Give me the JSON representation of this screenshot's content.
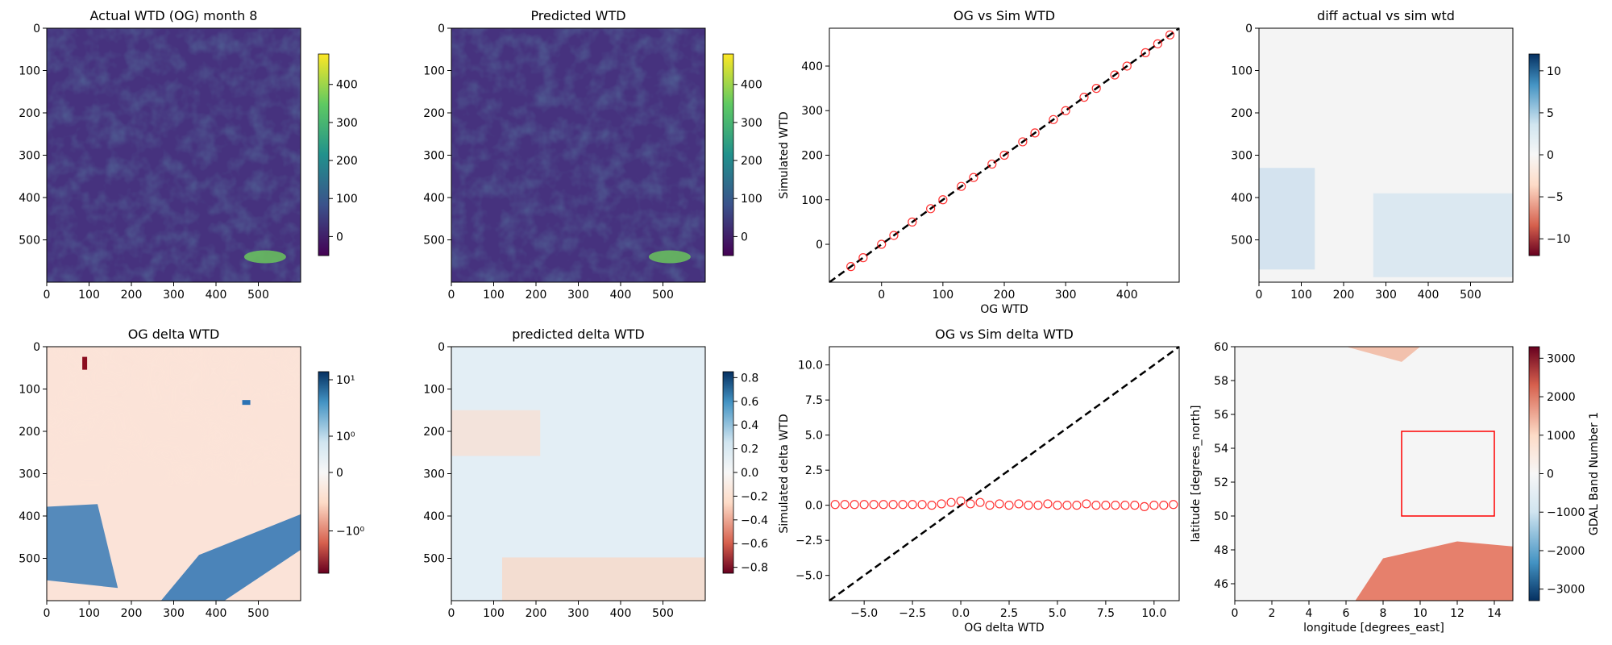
{
  "chart_data": [
    {
      "type": "heatmap",
      "title": "Actual WTD (OG) month 8",
      "xticks": [
        "0",
        "100",
        "200",
        "300",
        "400",
        "500"
      ],
      "yticks": [
        "0",
        "100",
        "200",
        "300",
        "400",
        "500"
      ],
      "colormap": "viridis",
      "colorbar": {
        "ticks": [
          "0",
          "100",
          "200",
          "300",
          "400"
        ],
        "range": [
          -50,
          480
        ]
      }
    },
    {
      "type": "heatmap",
      "title": "Predicted WTD",
      "xticks": [
        "0",
        "100",
        "200",
        "300",
        "400",
        "500"
      ],
      "yticks": [
        "0",
        "100",
        "200",
        "300",
        "400",
        "500"
      ],
      "colormap": "viridis",
      "colorbar": {
        "ticks": [
          "0",
          "100",
          "200",
          "300",
          "400"
        ],
        "range": [
          -50,
          480
        ]
      }
    },
    {
      "type": "scatter",
      "title": "OG vs Sim WTD",
      "xlabel": "OG WTD",
      "ylabel": "Simulated WTD",
      "xticks": [
        "0",
        "100",
        "200",
        "300",
        "400"
      ],
      "yticks": [
        "0",
        "100",
        "200",
        "300",
        "400"
      ],
      "xlim": [
        -85,
        485
      ],
      "ylim": [
        -85,
        485
      ],
      "marker_color": "#ff0000",
      "series": [
        {
          "x": [
            -50,
            -30,
            0,
            20,
            50,
            80,
            100,
            130,
            150,
            180,
            200,
            230,
            250,
            280,
            300,
            330,
            350,
            380,
            400,
            430,
            450,
            470
          ],
          "y": [
            -50,
            -30,
            0,
            20,
            50,
            80,
            100,
            130,
            150,
            180,
            200,
            230,
            250,
            280,
            300,
            330,
            350,
            380,
            400,
            430,
            450,
            470
          ]
        }
      ],
      "reference_line": "y = x (black dashed)"
    },
    {
      "type": "heatmap",
      "title": "diff actual vs sim wtd",
      "xticks": [
        "0",
        "100",
        "200",
        "300",
        "400",
        "500"
      ],
      "yticks": [
        "0",
        "100",
        "200",
        "300",
        "400",
        "500"
      ],
      "colormap": "RdBu",
      "colorbar": {
        "ticks": [
          "10",
          "5",
          "0",
          "−5",
          "−10"
        ],
        "range": [
          -12,
          12
        ]
      }
    },
    {
      "type": "heatmap",
      "title": "OG delta WTD",
      "xticks": [
        "0",
        "100",
        "200",
        "300",
        "400",
        "500"
      ],
      "yticks": [
        "0",
        "100",
        "200",
        "300",
        "400",
        "500"
      ],
      "colormap": "RdBu",
      "colorbar": {
        "ticks": [
          "10¹",
          "10⁰",
          "0",
          "−10⁰"
        ],
        "scale": "symlog"
      }
    },
    {
      "type": "heatmap",
      "title": "predicted delta WTD",
      "xticks": [
        "0",
        "100",
        "200",
        "300",
        "400",
        "500"
      ],
      "yticks": [
        "0",
        "100",
        "200",
        "300",
        "400",
        "500"
      ],
      "colormap": "RdBu",
      "colorbar": {
        "ticks": [
          "0.8",
          "0.6",
          "0.4",
          "0.2",
          "0.0",
          "−0.2",
          "−0.4",
          "−0.6",
          "−0.8"
        ],
        "range": [
          -0.85,
          0.85
        ]
      }
    },
    {
      "type": "scatter",
      "title": "OG vs Sim delta WTD",
      "xlabel": "OG delta WTD",
      "ylabel": "Simulated delta WTD",
      "xticks": [
        "−5.0",
        "−2.5",
        "0.0",
        "2.5",
        "5.0",
        "7.5",
        "10.0"
      ],
      "yticks": [
        "−5.0",
        "−2.5",
        "0.0",
        "2.5",
        "5.0",
        "7.5",
        "10.0"
      ],
      "xlim": [
        -6.8,
        11.3
      ],
      "ylim": [
        -6.8,
        11.3
      ],
      "marker_color": "#ff0000",
      "series": [
        {
          "x": [
            -6.5,
            -6.0,
            -5.5,
            -5.0,
            -4.5,
            -4.0,
            -3.5,
            -3.0,
            -2.5,
            -2.0,
            -1.5,
            -1.0,
            -0.5,
            0.0,
            0.5,
            1.0,
            1.5,
            2.0,
            2.5,
            3.0,
            3.5,
            4.0,
            4.5,
            5.0,
            5.5,
            6.0,
            6.5,
            7.0,
            7.5,
            8.0,
            8.5,
            9.0,
            9.5,
            10.0,
            10.5,
            11.0
          ],
          "y": [
            0.05,
            0.05,
            0.05,
            0.05,
            0.05,
            0.05,
            0.05,
            0.05,
            0.05,
            0.05,
            0.0,
            0.1,
            0.2,
            0.3,
            0.1,
            0.2,
            0.0,
            0.1,
            0.0,
            0.1,
            0.0,
            0.0,
            0.1,
            0.0,
            0.0,
            0.0,
            0.1,
            0.0,
            0.0,
            0.0,
            0.0,
            0.0,
            -0.1,
            0.0,
            0.0,
            0.05
          ]
        }
      ],
      "reference_line": "y = x (black dashed)"
    },
    {
      "type": "heatmap",
      "title": "",
      "xlabel": "longitude [degrees_east]",
      "ylabel": "latitude [degrees_north]",
      "xticks": [
        "0",
        "2",
        "4",
        "6",
        "8",
        "10",
        "12",
        "14"
      ],
      "yticks": [
        "46",
        "48",
        "50",
        "52",
        "54",
        "56",
        "58",
        "60"
      ],
      "xlim": [
        0,
        15
      ],
      "ylim": [
        45,
        60
      ],
      "colormap": "RdBu_r",
      "colorbar": {
        "label": "GDAL Band Number 1",
        "ticks": [
          "3000",
          "2000",
          "1000",
          "0",
          "−1000",
          "−2000",
          "−3000"
        ],
        "range": [
          -3300,
          3300
        ]
      },
      "box": {
        "lon": [
          9,
          14
        ],
        "lat": [
          50,
          55
        ],
        "color": "#ff0000"
      }
    }
  ]
}
